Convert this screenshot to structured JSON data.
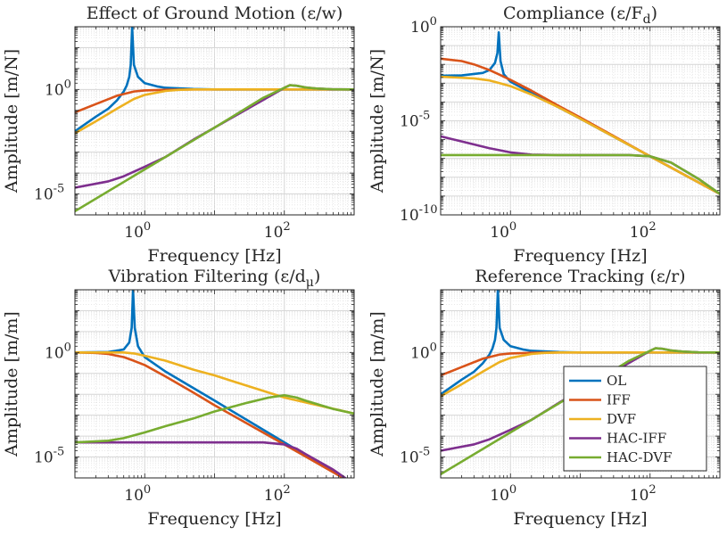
{
  "colors": {
    "OL": "#0072BD",
    "IFF": "#D95319",
    "DVF": "#EDB120",
    "HAC-IFF": "#7E2F8E",
    "HAC-DVF": "#77AC30"
  },
  "chart_data": [
    {
      "type": "line",
      "title": "Effect of Ground Motion (ε/w)",
      "xlabel": "Frequency [Hz]",
      "ylabel": "Amplitude [m/N]",
      "xscale": "log",
      "yscale": "log",
      "xlim": [
        0.1,
        1000
      ],
      "ylim": [
        1e-06,
        1000
      ],
      "xticks": [
        {
          "value": 1,
          "label": "10^0"
        },
        {
          "value": 100,
          "label": "10^2"
        }
      ],
      "yticks": [
        {
          "value": 1e-05,
          "label": "10^-5"
        },
        {
          "value": 1,
          "label": "10^0"
        }
      ],
      "grid": true,
      "series": [
        {
          "name": "OL",
          "x": [
            0.1,
            0.2,
            0.3,
            0.4,
            0.5,
            0.55,
            0.6,
            0.63,
            0.66,
            0.7,
            0.8,
            1,
            1.5,
            2,
            5,
            10,
            100,
            1000
          ],
          "y": [
            0.01,
            0.05,
            0.12,
            0.3,
            0.8,
            1.5,
            4,
            15,
            1000,
            15,
            4,
            2,
            1.4,
            1.2,
            1.05,
            1,
            1,
            1
          ]
        },
        {
          "name": "IFF",
          "x": [
            0.1,
            0.2,
            0.4,
            0.7,
            1,
            2,
            5,
            10,
            100,
            1000
          ],
          "y": [
            0.08,
            0.2,
            0.5,
            0.8,
            0.9,
            0.97,
            1,
            1,
            1,
            1
          ]
        },
        {
          "name": "DVF",
          "x": [
            0.1,
            0.2,
            0.4,
            0.7,
            1,
            2,
            3,
            5,
            10,
            100,
            1000
          ],
          "y": [
            0.008,
            0.03,
            0.12,
            0.35,
            0.55,
            0.85,
            0.95,
            1,
            1,
            1,
            1
          ]
        },
        {
          "name": "HAC-IFF",
          "x": [
            0.1,
            0.3,
            0.5,
            1,
            2,
            5,
            10,
            30,
            60,
            100,
            120,
            150,
            200,
            300,
            500,
            1000
          ],
          "y": [
            2e-05,
            4e-05,
            7e-05,
            0.0002,
            0.0006,
            0.004,
            0.015,
            0.12,
            0.45,
            1.2,
            1.6,
            1.5,
            1.25,
            1.1,
            1.02,
            1
          ]
        },
        {
          "name": "HAC-DVF",
          "x": [
            0.1,
            1,
            10,
            50,
            100,
            120,
            150,
            200,
            300,
            500,
            1000
          ],
          "y": [
            1.5e-06,
            0.00015,
            0.015,
            0.4,
            1.2,
            1.6,
            1.5,
            1.25,
            1.1,
            1.02,
            1
          ]
        }
      ]
    },
    {
      "type": "line",
      "title": "Compliance (ε/F_d)",
      "xlabel": "Frequency [Hz]",
      "ylabel": "Amplitude [m/N]",
      "xscale": "log",
      "yscale": "log",
      "xlim": [
        0.1,
        1000
      ],
      "ylim": [
        1e-10,
        1
      ],
      "xticks": [
        {
          "value": 1,
          "label": "10^0"
        },
        {
          "value": 100,
          "label": "10^2"
        }
      ],
      "yticks": [
        {
          "value": 1e-10,
          "label": "10^-10"
        },
        {
          "value": 1e-05,
          "label": "10^-5"
        },
        {
          "value": 1,
          "label": "10^0"
        }
      ],
      "grid": true,
      "series": [
        {
          "name": "OL",
          "x": [
            0.1,
            0.2,
            0.4,
            0.5,
            0.6,
            0.65,
            0.68,
            0.72,
            0.8,
            1,
            2,
            10,
            100,
            1000
          ],
          "y": [
            0.0025,
            0.0026,
            0.0035,
            0.005,
            0.012,
            0.04,
            0.5,
            0.015,
            0.003,
            0.0012,
            0.0003,
            1.3e-05,
            1.3e-07,
            1.3e-09
          ]
        },
        {
          "name": "IFF",
          "x": [
            0.1,
            0.2,
            0.3,
            0.5,
            0.7,
            1,
            2,
            5,
            10,
            100,
            1000
          ],
          "y": [
            0.02,
            0.015,
            0.01,
            0.005,
            0.0028,
            0.0015,
            0.0004,
            6e-05,
            1.5e-05,
            1.3e-07,
            1.3e-09
          ]
        },
        {
          "name": "DVF",
          "x": [
            0.1,
            0.3,
            0.5,
            0.7,
            1,
            2,
            5,
            10,
            100,
            1000
          ],
          "y": [
            0.0022,
            0.0018,
            0.0014,
            0.001,
            0.0007,
            0.00025,
            5e-05,
            1.3e-05,
            1.3e-07,
            1.3e-09
          ]
        },
        {
          "name": "HAC-IFF",
          "x": [
            0.1,
            0.2,
            0.5,
            1,
            2,
            5,
            10,
            50,
            100,
            200,
            500,
            1000
          ],
          "y": [
            1.5e-06,
            8e-07,
            3.5e-07,
            2.1e-07,
            1.6e-07,
            1.5e-07,
            1.5e-07,
            1.5e-07,
            1.3e-07,
            6e-08,
            8e-09,
            1.3e-09
          ]
        },
        {
          "name": "HAC-DVF",
          "x": [
            0.1,
            1,
            10,
            50,
            100,
            200,
            500,
            1000
          ],
          "y": [
            1.5e-07,
            1.5e-07,
            1.5e-07,
            1.5e-07,
            1.3e-07,
            6e-08,
            8e-09,
            1.3e-09
          ]
        }
      ]
    },
    {
      "type": "line",
      "title": "Vibration Filtering (ε/d_μ)",
      "xlabel": "Frequency [Hz]",
      "ylabel": "Amplitude [m/m]",
      "xscale": "log",
      "yscale": "log",
      "xlim": [
        0.1,
        1000
      ],
      "ylim": [
        1e-06,
        1000
      ],
      "xticks": [
        {
          "value": 1,
          "label": "10^0"
        },
        {
          "value": 100,
          "label": "10^2"
        }
      ],
      "yticks": [
        {
          "value": 1e-05,
          "label": "10^-5"
        },
        {
          "value": 1,
          "label": "10^0"
        }
      ],
      "grid": true,
      "series": [
        {
          "name": "OL",
          "x": [
            0.1,
            0.3,
            0.5,
            0.6,
            0.65,
            0.68,
            0.72,
            0.8,
            1,
            2,
            10,
            100,
            1000
          ],
          "y": [
            1,
            1.05,
            1.4,
            3,
            15,
            1000,
            15,
            2,
            0.6,
            0.12,
            0.005,
            5e-05,
            5e-07
          ]
        },
        {
          "name": "IFF",
          "x": [
            0.1,
            0.2,
            0.3,
            0.5,
            0.7,
            1,
            2,
            5,
            10,
            100,
            1000
          ],
          "y": [
            1,
            0.95,
            0.85,
            0.6,
            0.4,
            0.25,
            0.07,
            0.012,
            0.003,
            4e-05,
            5e-07
          ]
        },
        {
          "name": "DVF",
          "x": [
            0.1,
            0.3,
            0.5,
            0.7,
            1,
            2,
            5,
            10,
            100,
            1000
          ],
          "y": [
            1,
            1,
            1,
            0.9,
            0.7,
            0.4,
            0.15,
            0.08,
            0.007,
            0.0012
          ]
        },
        {
          "name": "HAC-IFF",
          "x": [
            0.1,
            1,
            10,
            50,
            100,
            150,
            200,
            500,
            1000
          ],
          "y": [
            5e-05,
            5e-05,
            5e-05,
            5e-05,
            4e-05,
            2.5e-05,
            1.4e-05,
            2.5e-06,
            5e-07
          ]
        },
        {
          "name": "HAC-DVF",
          "x": [
            0.1,
            0.3,
            0.5,
            1,
            2,
            5,
            10,
            30,
            60,
            100,
            150,
            200,
            500,
            1000
          ],
          "y": [
            5e-05,
            6e-05,
            8e-05,
            0.00015,
            0.0003,
            0.0007,
            0.0015,
            0.004,
            0.007,
            0.009,
            0.007,
            0.005,
            0.002,
            0.0012
          ]
        }
      ]
    },
    {
      "type": "line",
      "title": "Reference Tracking (ε/r)",
      "xlabel": "Frequency [Hz]",
      "ylabel": "Amplitude [m/m]",
      "xscale": "log",
      "yscale": "log",
      "xlim": [
        0.1,
        1000
      ],
      "ylim": [
        1e-06,
        1000
      ],
      "xticks": [
        {
          "value": 1,
          "label": "10^0"
        },
        {
          "value": 100,
          "label": "10^2"
        }
      ],
      "yticks": [
        {
          "value": 1e-05,
          "label": "10^-5"
        },
        {
          "value": 1,
          "label": "10^0"
        }
      ],
      "grid": true,
      "legend": {
        "position": "bottom-right",
        "entries": [
          "OL",
          "IFF",
          "DVF",
          "HAC-IFF",
          "HAC-DVF"
        ]
      },
      "series": [
        {
          "name": "OL",
          "x": [
            0.1,
            0.2,
            0.3,
            0.4,
            0.5,
            0.55,
            0.6,
            0.63,
            0.66,
            0.7,
            0.8,
            1,
            1.5,
            2,
            5,
            10,
            100,
            1000
          ],
          "y": [
            0.01,
            0.05,
            0.12,
            0.3,
            0.8,
            1.5,
            4,
            15,
            1000,
            15,
            4,
            2,
            1.4,
            1.2,
            1.05,
            1,
            1,
            1
          ]
        },
        {
          "name": "IFF",
          "x": [
            0.1,
            0.2,
            0.4,
            0.7,
            1,
            2,
            5,
            10,
            100,
            1000
          ],
          "y": [
            0.08,
            0.2,
            0.5,
            0.8,
            0.9,
            0.97,
            1,
            1,
            1,
            1
          ]
        },
        {
          "name": "DVF",
          "x": [
            0.1,
            0.2,
            0.4,
            0.7,
            1,
            2,
            3,
            5,
            10,
            100,
            1000
          ],
          "y": [
            0.008,
            0.03,
            0.12,
            0.35,
            0.55,
            0.85,
            0.95,
            1,
            1,
            1,
            1
          ]
        },
        {
          "name": "HAC-IFF",
          "x": [
            0.1,
            0.3,
            0.5,
            1,
            2,
            5,
            10,
            30,
            60,
            100,
            120,
            150,
            200,
            300,
            500,
            1000
          ],
          "y": [
            2e-05,
            4e-05,
            7e-05,
            0.0002,
            0.0006,
            0.004,
            0.015,
            0.12,
            0.45,
            1.2,
            1.6,
            1.5,
            1.25,
            1.1,
            1.02,
            1
          ]
        },
        {
          "name": "HAC-DVF",
          "x": [
            0.1,
            1,
            10,
            50,
            100,
            120,
            150,
            200,
            300,
            500,
            1000
          ],
          "y": [
            1.5e-06,
            0.00015,
            0.015,
            0.4,
            1.2,
            1.6,
            1.5,
            1.25,
            1.1,
            1.02,
            1
          ]
        }
      ]
    }
  ]
}
